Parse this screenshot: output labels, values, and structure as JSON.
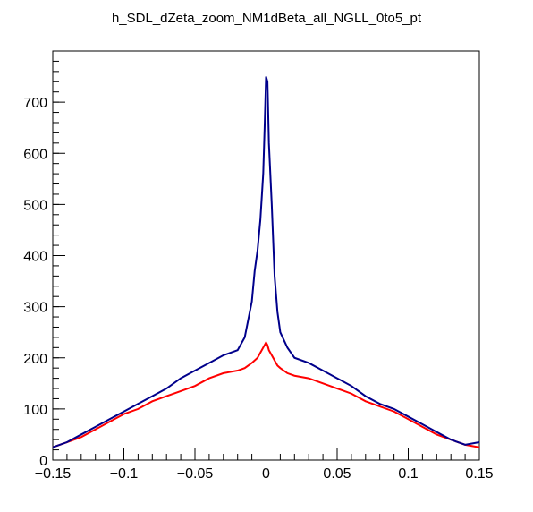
{
  "chart_data": {
    "type": "line",
    "title": "h_SDL_dZeta_zoom_NM1dBeta_all_NGLL_0to5_pt",
    "xlabel": "",
    "ylabel": "",
    "xlim": [
      -0.15,
      0.15
    ],
    "ylim": [
      0,
      800
    ],
    "x_ticks": [
      {
        "value": -0.15,
        "label": "−0.15"
      },
      {
        "value": -0.1,
        "label": "−0.1"
      },
      {
        "value": -0.05,
        "label": "−0.05"
      },
      {
        "value": 0,
        "label": "0"
      },
      {
        "value": 0.05,
        "label": "0.05"
      },
      {
        "value": 0.1,
        "label": "0.1"
      },
      {
        "value": 0.15,
        "label": "0.15"
      }
    ],
    "y_ticks": [
      {
        "value": 0,
        "label": "0"
      },
      {
        "value": 100,
        "label": "100"
      },
      {
        "value": 200,
        "label": "200"
      },
      {
        "value": 300,
        "label": "300"
      },
      {
        "value": 400,
        "label": "400"
      },
      {
        "value": 500,
        "label": "500"
      },
      {
        "value": 600,
        "label": "600"
      },
      {
        "value": 700,
        "label": "700"
      }
    ],
    "grid": false,
    "legend": "none",
    "x": [
      -0.15,
      -0.14,
      -0.13,
      -0.12,
      -0.11,
      -0.1,
      -0.09,
      -0.08,
      -0.07,
      -0.06,
      -0.05,
      -0.04,
      -0.03,
      -0.02,
      -0.015,
      -0.01,
      -0.008,
      -0.006,
      -0.004,
      -0.002,
      -0.001,
      0,
      0.001,
      0.002,
      0.004,
      0.006,
      0.008,
      0.01,
      0.015,
      0.02,
      0.03,
      0.04,
      0.05,
      0.06,
      0.07,
      0.08,
      0.09,
      0.1,
      0.11,
      0.12,
      0.13,
      0.14,
      0.15
    ],
    "series": [
      {
        "color": "#ff0000",
        "values": [
          25,
          35,
          45,
          60,
          75,
          90,
          100,
          115,
          125,
          135,
          145,
          160,
          170,
          175,
          180,
          190,
          195,
          200,
          210,
          220,
          225,
          230,
          225,
          215,
          205,
          195,
          185,
          180,
          170,
          165,
          160,
          150,
          140,
          130,
          115,
          105,
          95,
          80,
          65,
          50,
          40,
          30,
          25
        ]
      },
      {
        "color": "#00008b",
        "values": [
          25,
          35,
          50,
          65,
          80,
          95,
          110,
          125,
          140,
          160,
          175,
          190,
          205,
          215,
          240,
          310,
          370,
          410,
          470,
          560,
          650,
          750,
          740,
          620,
          500,
          360,
          290,
          250,
          220,
          200,
          190,
          175,
          160,
          145,
          125,
          110,
          100,
          85,
          70,
          55,
          40,
          30,
          35
        ]
      }
    ],
    "colors": {
      "axis": "#000000",
      "red_series": "#ff0000",
      "blue_series": "#00008b"
    }
  }
}
